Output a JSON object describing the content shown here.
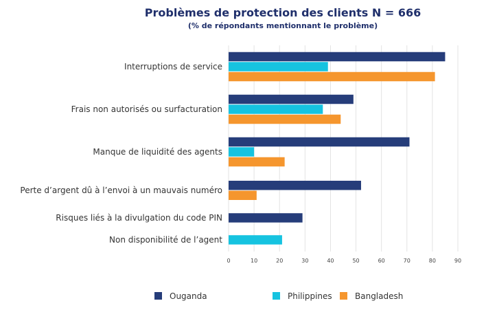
{
  "chart_data": {
    "type": "bar",
    "orientation": "horizontal",
    "title": "Problèmes de protection des clients N = 666",
    "subtitle": "(% de répondants mentionnant le problème)",
    "categories": [
      "Interruptions de service",
      "Frais non autorisés ou surfacturation",
      "Manque de liquidité des agents",
      "Perte d’argent dû à l’envoi à un mauvais numéro",
      "Risques liés à la divulgation du code PIN",
      "Non disponibilité de l’agent"
    ],
    "series": [
      {
        "name": "Ouganda",
        "color": "#263d7a",
        "values": [
          85,
          49,
          71,
          52,
          29,
          null
        ]
      },
      {
        "name": "Philippines",
        "color": "#16c3e0",
        "values": [
          39,
          37,
          10,
          null,
          null,
          21
        ]
      },
      {
        "name": "Bangladesh",
        "color": "#f5962e",
        "values": [
          81,
          44,
          22,
          11,
          null,
          null
        ]
      }
    ],
    "xlim": [
      0,
      90
    ],
    "xticks": [
      0,
      10,
      20,
      30,
      40,
      50,
      60,
      70,
      80,
      90
    ],
    "grid": true,
    "legend_position": "bottom",
    "colors": {
      "title": "#1f2f6b",
      "text": "#333333",
      "grid": "#e3e3e3"
    }
  }
}
